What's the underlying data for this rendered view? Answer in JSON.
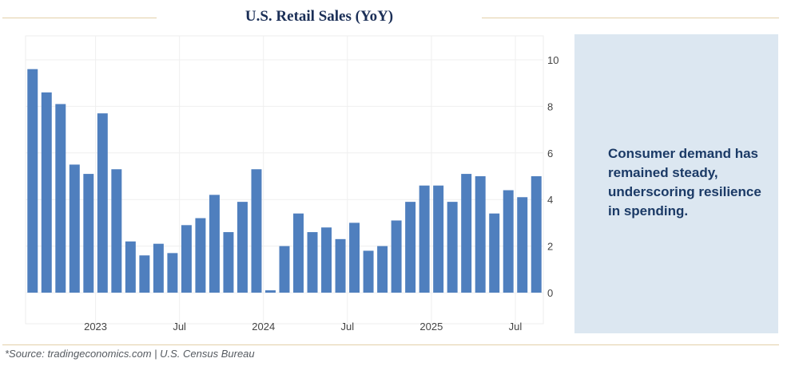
{
  "header": {
    "title": "U.S. Retail Sales (YoY)"
  },
  "callout": {
    "text": "Consumer demand has remained steady, underscoring resilience in spending."
  },
  "footer": {
    "source": "*Source: tradingeconomics.com  |  U.S. Census Bureau"
  },
  "colors": {
    "bar": "#4f7fbe",
    "title": "#1b2f57",
    "callout_bg": "#dce7f1",
    "rule": "#e3cfa8"
  },
  "chart_data": {
    "type": "bar",
    "title": "U.S. Retail Sales (YoY)",
    "xlabel": "",
    "ylabel": "",
    "ylim": [
      0,
      11
    ],
    "y_ticks": [
      0,
      2,
      4,
      6,
      8,
      10
    ],
    "y_axis_side": "right",
    "grid": true,
    "categories": [
      "2022-08",
      "2022-09",
      "2022-10",
      "2022-11",
      "2022-12",
      "2023-01",
      "2023-02",
      "2023-03",
      "2023-04",
      "2023-05",
      "2023-06",
      "2023-07",
      "2023-08",
      "2023-09",
      "2023-10",
      "2023-11",
      "2023-12",
      "2024-01",
      "2024-02",
      "2024-03",
      "2024-04",
      "2024-05",
      "2024-06",
      "2024-07",
      "2024-08",
      "2024-09",
      "2024-10",
      "2024-11",
      "2024-12",
      "2025-01",
      "2025-02",
      "2025-03",
      "2025-04",
      "2025-05",
      "2025-06",
      "2025-07",
      "2025-08"
    ],
    "values": [
      9.6,
      8.6,
      8.1,
      5.5,
      5.1,
      7.7,
      5.3,
      2.2,
      1.6,
      2.1,
      1.7,
      2.9,
      3.2,
      4.2,
      2.6,
      3.9,
      5.3,
      0.1,
      2.0,
      3.4,
      2.6,
      2.8,
      2.3,
      3.0,
      1.8,
      2.0,
      3.1,
      3.9,
      4.6,
      4.6,
      3.9,
      5.1,
      5.0,
      3.4,
      4.4,
      4.1,
      5.0
    ],
    "x_tick_labels": [
      {
        "label": "2023",
        "index": 4.5
      },
      {
        "label": "Jul",
        "index": 10.5
      },
      {
        "label": "2024",
        "index": 16.5
      },
      {
        "label": "Jul",
        "index": 22.5
      },
      {
        "label": "2025",
        "index": 28.5
      },
      {
        "label": "Jul",
        "index": 34.5
      }
    ]
  }
}
